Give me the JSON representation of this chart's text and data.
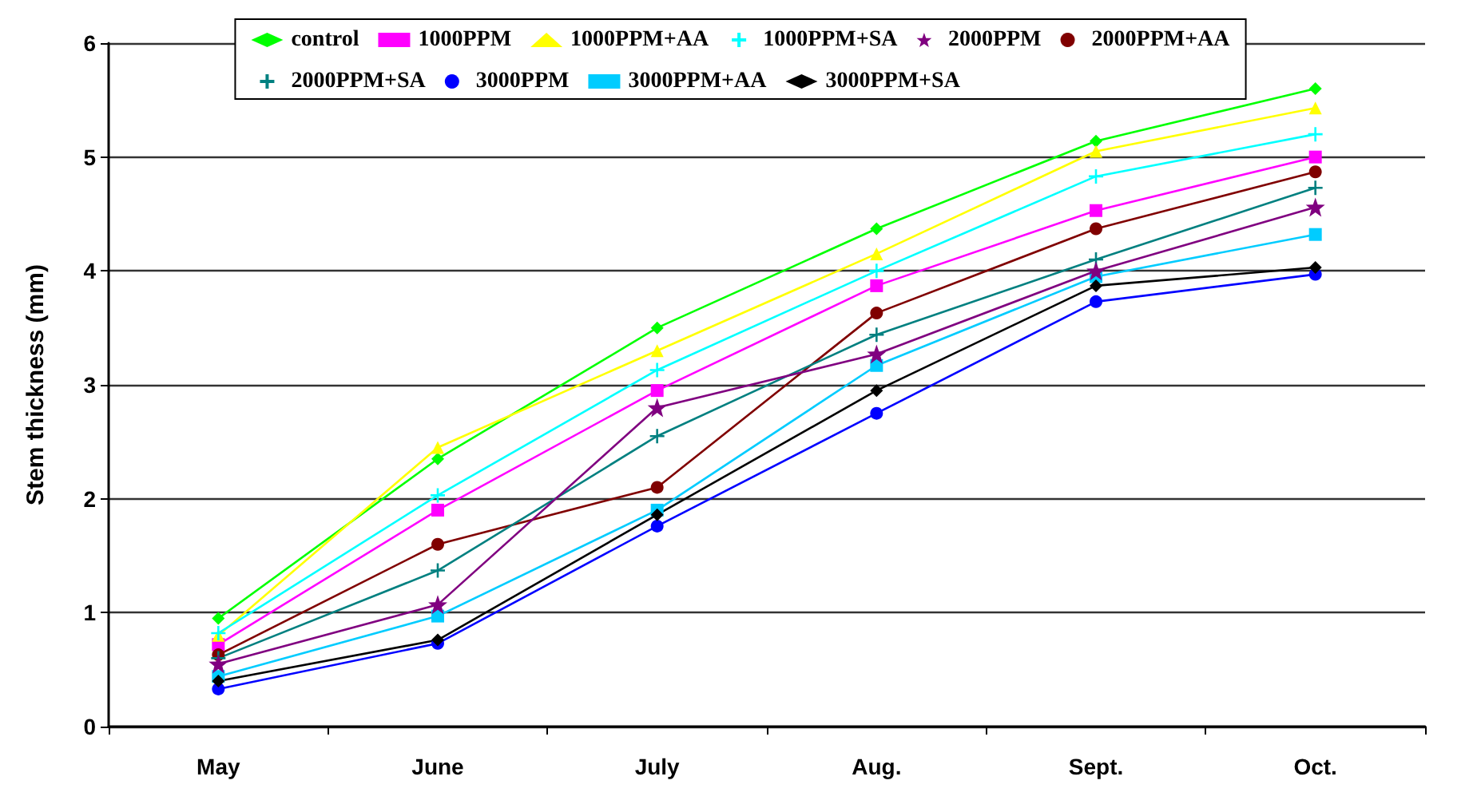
{
  "chart_data": {
    "type": "line",
    "ylabel": "Stem thickness (mm)",
    "categories": [
      "May",
      "June",
      "July",
      "Aug.",
      "Sept.",
      "Oct."
    ],
    "ylim": [
      0,
      6
    ],
    "yticks": [
      0,
      1,
      2,
      3,
      4,
      5,
      6
    ],
    "grid": "y",
    "legend": "top",
    "series": [
      {
        "name": "control",
        "color": "#00ff00",
        "marker": "diamond",
        "values": [
          0.95,
          2.35,
          3.5,
          4.37,
          5.14,
          5.6
        ]
      },
      {
        "name": "1000PPM",
        "color": "#ff00ff",
        "marker": "square",
        "values": [
          0.72,
          1.9,
          2.95,
          3.87,
          4.53,
          5.0
        ]
      },
      {
        "name": "1000PPM+AA",
        "color": "#ffff00",
        "marker": "triangle",
        "values": [
          0.8,
          2.45,
          3.3,
          4.15,
          5.05,
          5.43
        ]
      },
      {
        "name": "1000PPM+SA",
        "color": "#00ffff",
        "marker": "cross",
        "values": [
          0.82,
          2.03,
          3.13,
          4.0,
          4.83,
          5.2
        ]
      },
      {
        "name": "2000PPM",
        "color": "#800080",
        "marker": "star",
        "values": [
          0.55,
          1.07,
          2.8,
          3.27,
          4.0,
          4.56
        ]
      },
      {
        "name": "2000PPM+AA",
        "color": "#800000",
        "marker": "circle",
        "values": [
          0.63,
          1.6,
          2.1,
          3.63,
          4.37,
          4.87
        ]
      },
      {
        "name": "2000PPM+SA",
        "color": "#008080",
        "marker": "cross",
        "values": [
          0.6,
          1.37,
          2.55,
          3.44,
          4.1,
          4.73
        ]
      },
      {
        "name": "3000PPM",
        "color": "#0000ff",
        "marker": "circle",
        "values": [
          0.33,
          0.73,
          1.76,
          2.75,
          3.73,
          3.97
        ]
      },
      {
        "name": "3000PPM+AA",
        "color": "#00ccff",
        "marker": "square",
        "values": [
          0.44,
          0.97,
          1.9,
          3.17,
          3.95,
          4.32
        ]
      },
      {
        "name": "3000PPM+SA",
        "color": "#000000",
        "marker": "diamond",
        "values": [
          0.4,
          0.76,
          1.86,
          2.95,
          3.87,
          4.03
        ]
      }
    ]
  }
}
